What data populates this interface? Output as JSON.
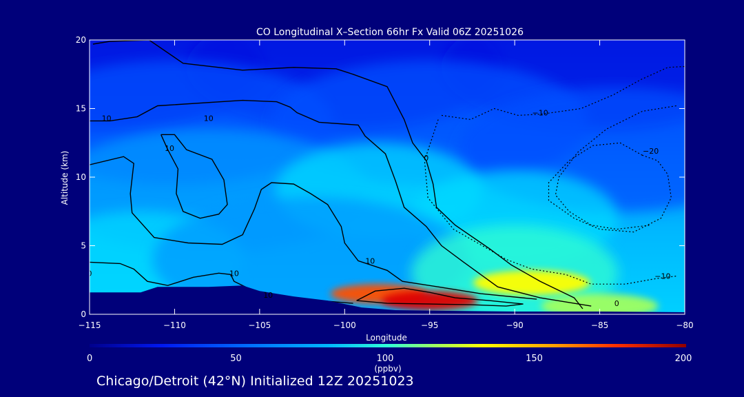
{
  "chart_data": {
    "type": "heatmap",
    "title": "CO Longitudinal X–Section 66hr  Fx Valid 06Z 20251026",
    "xlabel": "Longitude",
    "ylabel": "Altitude (km)",
    "xlim": [
      -115,
      -80
    ],
    "ylim": [
      0,
      20
    ],
    "x_ticks": [
      -115,
      -110,
      -105,
      -100,
      -95,
      -90,
      -85,
      -80
    ],
    "x_tick_labels": [
      "−115",
      "−110",
      "−105",
      "−100",
      "−95",
      "−90",
      "−85",
      "−80"
    ],
    "y_ticks": [
      0,
      5,
      10,
      15,
      20
    ],
    "y_tick_labels": [
      "0",
      "5",
      "10",
      "15",
      "20"
    ],
    "colorbar": {
      "min": 0,
      "max": 200,
      "ticks": [
        0,
        50,
        100,
        150,
        200
      ],
      "tick_labels": [
        "0",
        "50",
        "100",
        "150",
        "200"
      ],
      "units": "(ppbv)",
      "colors": [
        "#00008c",
        "#0010e0",
        "#0050ff",
        "#0098ff",
        "#00d8ff",
        "#30ffd0",
        "#a0ff60",
        "#ffff00",
        "#ffb000",
        "#ff5000",
        "#e00000",
        "#900000"
      ]
    },
    "co_field": [
      {
        "lon": -114,
        "alt": 18,
        "value": 22
      },
      {
        "lon": -100,
        "alt": 18,
        "value": 25
      },
      {
        "lon": -85,
        "alt": 18,
        "value": 24
      },
      {
        "lon": -110,
        "alt": 14,
        "value": 35
      },
      {
        "lon": -95,
        "alt": 14,
        "value": 38
      },
      {
        "lon": -84,
        "alt": 12,
        "value": 30
      },
      {
        "lon": -108,
        "alt": 9,
        "value": 60
      },
      {
        "lon": -98,
        "alt": 9,
        "value": 70
      },
      {
        "lon": -90,
        "alt": 7,
        "value": 72
      },
      {
        "lon": -112,
        "alt": 4,
        "value": 65
      },
      {
        "lon": -102,
        "alt": 4,
        "value": 55
      },
      {
        "lon": -90,
        "alt": 3,
        "value": 85
      },
      {
        "lon": -98,
        "alt": 1.5,
        "value": 160
      },
      {
        "lon": -95,
        "alt": 1,
        "value": 190
      },
      {
        "lon": -89,
        "alt": 2.3,
        "value": 125
      },
      {
        "lon": -85,
        "alt": 0.6,
        "value": 115
      }
    ],
    "contour_labels": [
      {
        "text": "10",
        "lon": -114,
        "alt": 14.1
      },
      {
        "text": "10",
        "lon": -108,
        "alt": 14.1
      },
      {
        "text": "10",
        "lon": -110.3,
        "alt": 11.9
      },
      {
        "text": "0",
        "lon": -115,
        "alt": 2.8
      },
      {
        "text": "10",
        "lon": -106.5,
        "alt": 2.8
      },
      {
        "text": "10",
        "lon": -104.5,
        "alt": 1.2
      },
      {
        "text": "10",
        "lon": -98.5,
        "alt": 3.7
      },
      {
        "text": "0",
        "lon": -95.2,
        "alt": 11.2
      },
      {
        "text": "−10",
        "lon": -88.5,
        "alt": 14.5
      },
      {
        "text": "−20",
        "lon": -82,
        "alt": 11.7
      },
      {
        "text": "−10",
        "lon": -81.3,
        "alt": 2.6
      },
      {
        "text": "0",
        "lon": -84,
        "alt": 0.6
      }
    ],
    "terrain_km": [
      [
        -115,
        1.6
      ],
      [
        -112,
        1.6
      ],
      [
        -111,
        2.0
      ],
      [
        -108,
        2.0
      ],
      [
        -106,
        2.1
      ],
      [
        -105,
        1.7
      ],
      [
        -103,
        1.3
      ],
      [
        -101,
        1.0
      ],
      [
        -99,
        0.5
      ],
      [
        -97,
        0.3
      ],
      [
        -94,
        0.25
      ],
      [
        -90,
        0.2
      ],
      [
        -85,
        0.2
      ],
      [
        -80,
        0.15
      ]
    ]
  },
  "footer_text": "Chicago/Detroit (42°N) Initialized 12Z 20251023"
}
